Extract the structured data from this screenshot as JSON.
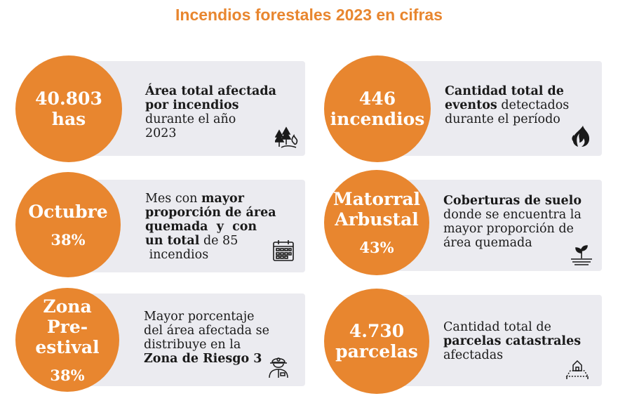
{
  "title": "Incendios forestales 2023 en cifras",
  "cards": [
    {
      "circle": {
        "line1": "40.803",
        "line2": "has"
      },
      "desc": {
        "b1": "Área total afectada",
        "b2": "por incendios",
        "t1": "durante el año",
        "t2": "2023"
      },
      "icon": "forest-fire-icon"
    },
    {
      "circle": {
        "line1": "446",
        "line2": "incendios"
      },
      "desc": {
        "b1": "Cantidad total de",
        "b2": "eventos",
        "t2": " detectados",
        "t3": "durante el período"
      },
      "icon": "flame-icon"
    },
    {
      "circle": {
        "line1": "Octubre",
        "pct": "38%"
      },
      "desc": {
        "t1": "Mes con ",
        "b1": "mayor",
        "b2": "proporción de área",
        "b3": "quemada  y  con",
        "b4": "un total",
        "t2": " de 85",
        "t3": " incendios"
      },
      "icon": "calendar-icon"
    },
    {
      "circle": {
        "line1": "Matorral",
        "line2": "Arbustal",
        "pct": "43%"
      },
      "desc": {
        "b1": "Coberturas de suelo",
        "t1": "donde se encuentra la",
        "t2": "mayor proporción de",
        "t3": "área quemada"
      },
      "icon": "sprout-icon"
    },
    {
      "circle": {
        "line1": "Zona",
        "line2": "Pre-estival",
        "pct": "38%"
      },
      "desc": {
        "t1": "Mayor porcentaje",
        "t2": "del área afectada se",
        "t3": "distribuye en la",
        "b1": "Zona de Riesgo 3"
      },
      "icon": "firefighter-icon"
    },
    {
      "circle": {
        "line1": "4.730",
        "line2": "parcelas"
      },
      "desc": {
        "t1": "Cantidad total de",
        "b1": "parcelas catastrales",
        "t2": "afectadas"
      },
      "icon": "land-parcel-icon"
    }
  ],
  "colors": {
    "accent": "#e8862f",
    "card": "#ebebf0",
    "text": "#1a1a1a"
  }
}
